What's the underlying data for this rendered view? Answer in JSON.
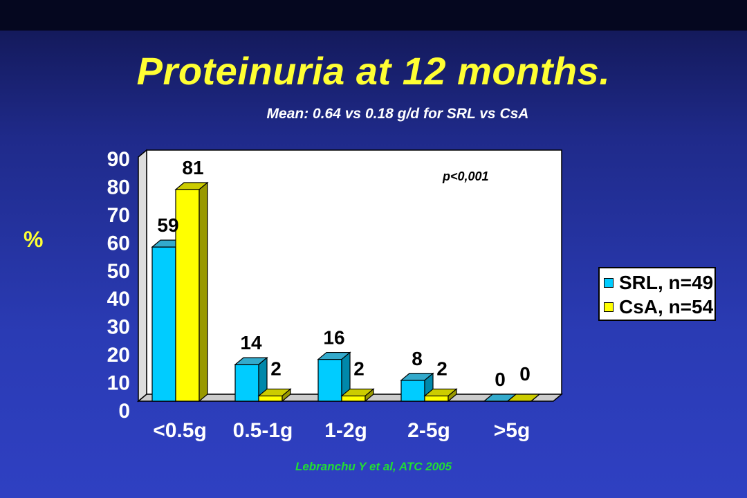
{
  "title": "Proteinuria at 12 months.",
  "subtitle": "Mean: 0.64 vs 0.18 g/d for SRL vs CsA",
  "citation": "Lebranchu Y et al,  ATC 2005",
  "colors": {
    "srl": "#00ccff",
    "csa": "#ffff00",
    "title": "#ffff33",
    "citation": "#22dd33"
  },
  "chart_data": {
    "type": "bar",
    "title": "",
    "xlabel": "",
    "ylabel": "%",
    "ylim": [
      0,
      90
    ],
    "yticks": [
      "0",
      "10",
      "20",
      "30",
      "40",
      "50",
      "60",
      "70",
      "80",
      "90"
    ],
    "categories": [
      "<0.5g",
      "0.5-1g",
      "1-2g",
      "2-5g",
      ">5g"
    ],
    "series": [
      {
        "name": "SRL, n=49",
        "values": [
          59,
          14,
          16,
          8,
          0
        ],
        "labels": [
          "59",
          "14",
          "16",
          "8",
          "0"
        ]
      },
      {
        "name": "CsA, n=54",
        "values": [
          81,
          2,
          2,
          2,
          0
        ],
        "labels": [
          "81",
          "2",
          "2",
          "2",
          "0"
        ]
      }
    ],
    "annotation": "p<0,001",
    "legend_position": "right",
    "three_d": true
  }
}
